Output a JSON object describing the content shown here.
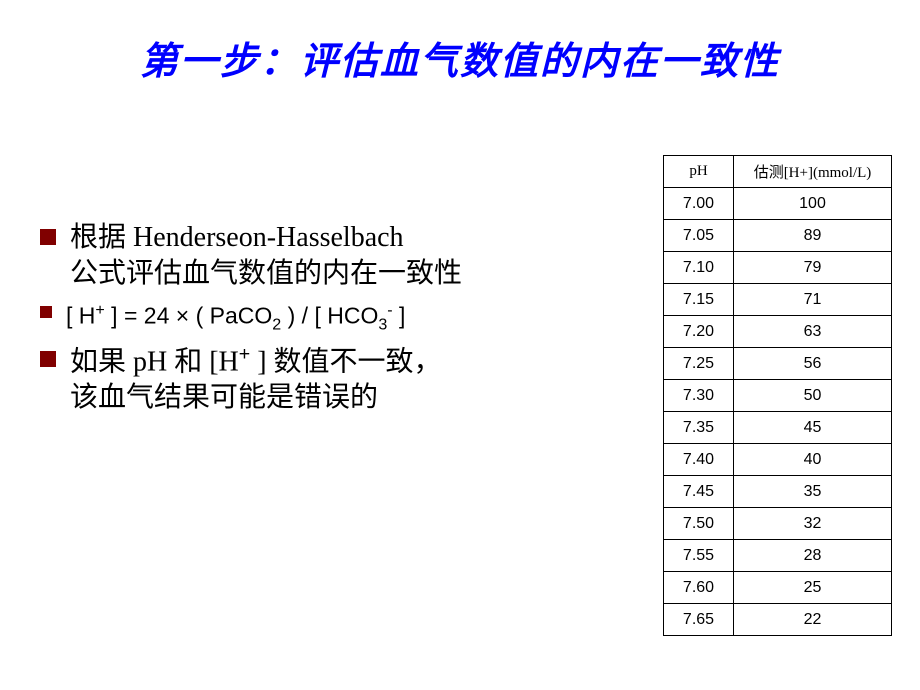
{
  "title": "第一步：评估血气数值的内在一致性",
  "bullets": {
    "b1_line1": "根据 Henderseon-Hasselbach",
    "b1_line2": "公式评估血气数值的内在一致性",
    "b2_pre": "[ H",
    "b2_mid1": " ] = 24 × ( PaCO",
    "b2_mid2": " ) / [ HCO",
    "b2_end": " ]",
    "b3_pre": "如果 pH 和 [H",
    "b3_mid": " ] 数值不一致，",
    "b3_line2": "该血气结果可能是错误的",
    "sup_plus": "+",
    "sub_2": "2",
    "sub_3": "3",
    "sup_minus": "-"
  },
  "table": {
    "header_ph": "pH",
    "header_h": "估测[H+](mmol/L)",
    "rows": [
      {
        "ph": "7.00",
        "h": "100"
      },
      {
        "ph": "7.05",
        "h": "89"
      },
      {
        "ph": "7.10",
        "h": "79"
      },
      {
        "ph": "7.15",
        "h": "71"
      },
      {
        "ph": "7.20",
        "h": "63"
      },
      {
        "ph": "7.25",
        "h": "56"
      },
      {
        "ph": "7.30",
        "h": "50"
      },
      {
        "ph": "7.35",
        "h": "45"
      },
      {
        "ph": "7.40",
        "h": "40"
      },
      {
        "ph": "7.45",
        "h": "35"
      },
      {
        "ph": "7.50",
        "h": "32"
      },
      {
        "ph": "7.55",
        "h": "28"
      },
      {
        "ph": "7.60",
        "h": "25"
      },
      {
        "ph": "7.65",
        "h": "22"
      }
    ]
  },
  "style": {
    "title_color": "#0000ff",
    "bullet_color": "#800000",
    "text_color": "#000000",
    "border_color": "#000000",
    "background_color": "#ffffff"
  }
}
